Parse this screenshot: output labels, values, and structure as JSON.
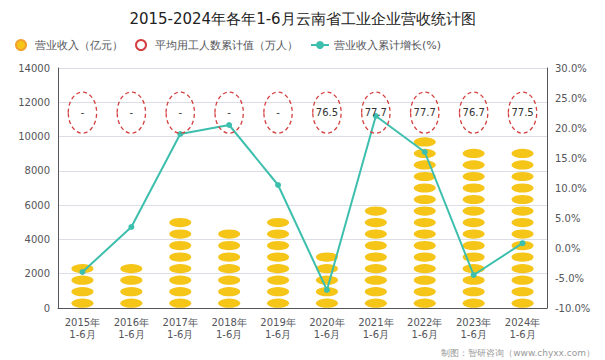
{
  "chart_data": {
    "type": "bar",
    "title": "2015-2024年各年1-6月云南省工业企业营收统计图",
    "categories": [
      "2015年\n1-6月",
      "2016年\n1-6月",
      "2017年\n1-6月",
      "2018年\n1-6月",
      "2019年\n1-6月",
      "2020年\n1-6月",
      "2021年\n1-6月",
      "2022年\n1-6月",
      "2023年\n1-6月",
      "2024年\n1-6月"
    ],
    "series": [
      {
        "name": "营业收入（亿元）",
        "type": "bar",
        "marker": "circle",
        "color": "#F5C518",
        "values": [
          2100,
          2100,
          4800,
          4000,
          4600,
          3200,
          5500,
          9300,
          8700,
          8700
        ]
      },
      {
        "name": "平均用工人数累计值（万人）",
        "type": "scatter",
        "marker": "ellipse",
        "line_style": "dashed",
        "color": "#D44040",
        "data_labels": true,
        "values": [
          null,
          null,
          null,
          null,
          null,
          76.5,
          77.7,
          77.7,
          76.7,
          77.5
        ],
        "value_labels": [
          "-",
          "-",
          "-",
          "-",
          "-",
          "76.5",
          "77.7",
          "77.7",
          "76.7",
          "77.5"
        ]
      },
      {
        "name": "营业收入累计增长(%)",
        "type": "line",
        "marker": "circle",
        "color": "#3DBFAD",
        "axis": "y2",
        "values": [
          -4.0,
          3.5,
          19.0,
          20.5,
          10.5,
          -7.0,
          22.0,
          16.0,
          -4.5,
          0.8
        ]
      }
    ],
    "ylim": [
      0,
      14000
    ],
    "yticks": [
      0,
      2000,
      4000,
      6000,
      8000,
      10000,
      12000,
      14000
    ],
    "y2lim": [
      -10,
      30
    ],
    "y2ticks": [
      {
        "value": -10,
        "label": "-10.0%"
      },
      {
        "value": -5,
        "label": "-5.0%"
      },
      {
        "value": 0,
        "label": "0.0%"
      },
      {
        "value": 5,
        "label": "5.0%"
      },
      {
        "value": 10,
        "label": "10.0%"
      },
      {
        "value": 15,
        "label": "15.0%"
      },
      {
        "value": 20,
        "label": "20.0%"
      },
      {
        "value": 25,
        "label": "25.0%"
      },
      {
        "value": 30,
        "label": "30.0%"
      }
    ],
    "grid": true,
    "legend": "upper left",
    "annotations": [
      "制图：智研咨询（www.chyxx.com）"
    ]
  }
}
